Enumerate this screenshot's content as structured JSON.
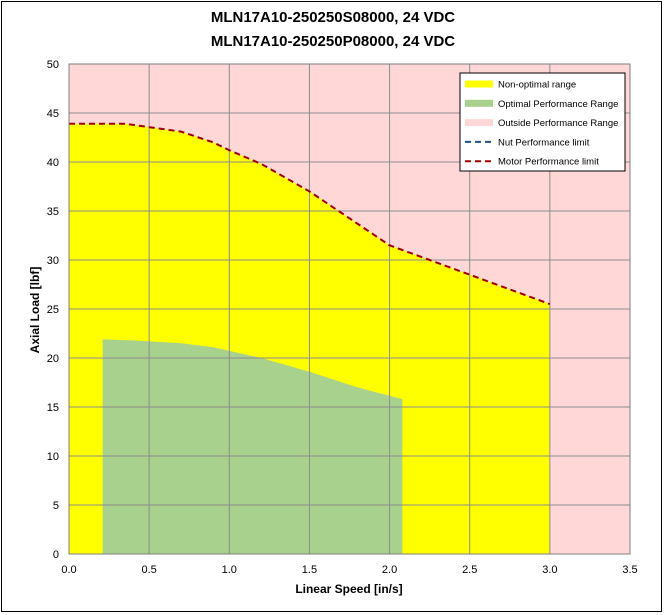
{
  "chart_data": {
    "type": "area",
    "title_lines": [
      "MLN17A10-250250S08000, 24 VDC",
      "MLN17A10-250250P08000, 24 VDC"
    ],
    "xlabel": "Linear Speed [in/s]",
    "ylabel": "Axial Load [lbf]",
    "xlim": [
      0,
      3.5
    ],
    "ylim": [
      0,
      50
    ],
    "x_ticks": [
      "0.0",
      "0.5",
      "1.0",
      "1.5",
      "2.0",
      "2.5",
      "3.0",
      "3.5"
    ],
    "y_ticks": [
      "0",
      "5",
      "10",
      "15",
      "20",
      "25",
      "30",
      "35",
      "40",
      "45",
      "50"
    ],
    "grid": true,
    "legend_position": "top-right",
    "background_region": {
      "name": "Outside Performance Range",
      "color": "#ffd7d7"
    },
    "series": [
      {
        "name": "Non-optimal range",
        "kind": "area",
        "color": "#ffff00",
        "x": [
          0.0,
          0.35,
          0.7,
          0.9,
          1.0,
          1.2,
          1.5,
          2.0,
          2.25,
          2.5,
          2.75,
          3.0
        ],
        "y": [
          43.9,
          43.9,
          43.1,
          42.0,
          41.2,
          39.8,
          37.0,
          31.5,
          30.0,
          28.5,
          27.0,
          25.5
        ]
      },
      {
        "name": "Optimal Performance Range",
        "kind": "area",
        "color": "#a9d18e",
        "x": [
          0.21,
          0.4,
          0.7,
          0.9,
          1.2,
          1.5,
          1.8,
          2.08
        ],
        "y": [
          21.9,
          21.8,
          21.5,
          21.1,
          20.0,
          18.6,
          17.0,
          15.8
        ]
      },
      {
        "name": "Nut Performance limit",
        "kind": "dashed-line",
        "color": "#1f4e8c",
        "x": [],
        "y": []
      },
      {
        "name": "Motor Performance limit",
        "kind": "dashed-line",
        "color": "#a00000",
        "x": [
          0.0,
          0.35,
          0.7,
          0.9,
          1.0,
          1.2,
          1.5,
          2.0,
          2.25,
          2.5,
          2.75,
          3.0
        ],
        "y": [
          43.9,
          43.9,
          43.1,
          42.0,
          41.2,
          39.8,
          37.0,
          31.5,
          30.0,
          28.5,
          27.0,
          25.5
        ]
      }
    ],
    "legend": [
      {
        "label": "Non-optimal range",
        "swatch": "fill",
        "color": "#ffff00"
      },
      {
        "label": "Optimal Performance Range",
        "swatch": "fill",
        "color": "#a9d18e"
      },
      {
        "label": "Outside Performance Range",
        "swatch": "fill",
        "color": "#ffd7d7"
      },
      {
        "label": "Nut Performance limit",
        "swatch": "dash",
        "color": "#1f4e8c"
      },
      {
        "label": "Motor Performance limit",
        "swatch": "dash",
        "color": "#a00000"
      }
    ]
  }
}
